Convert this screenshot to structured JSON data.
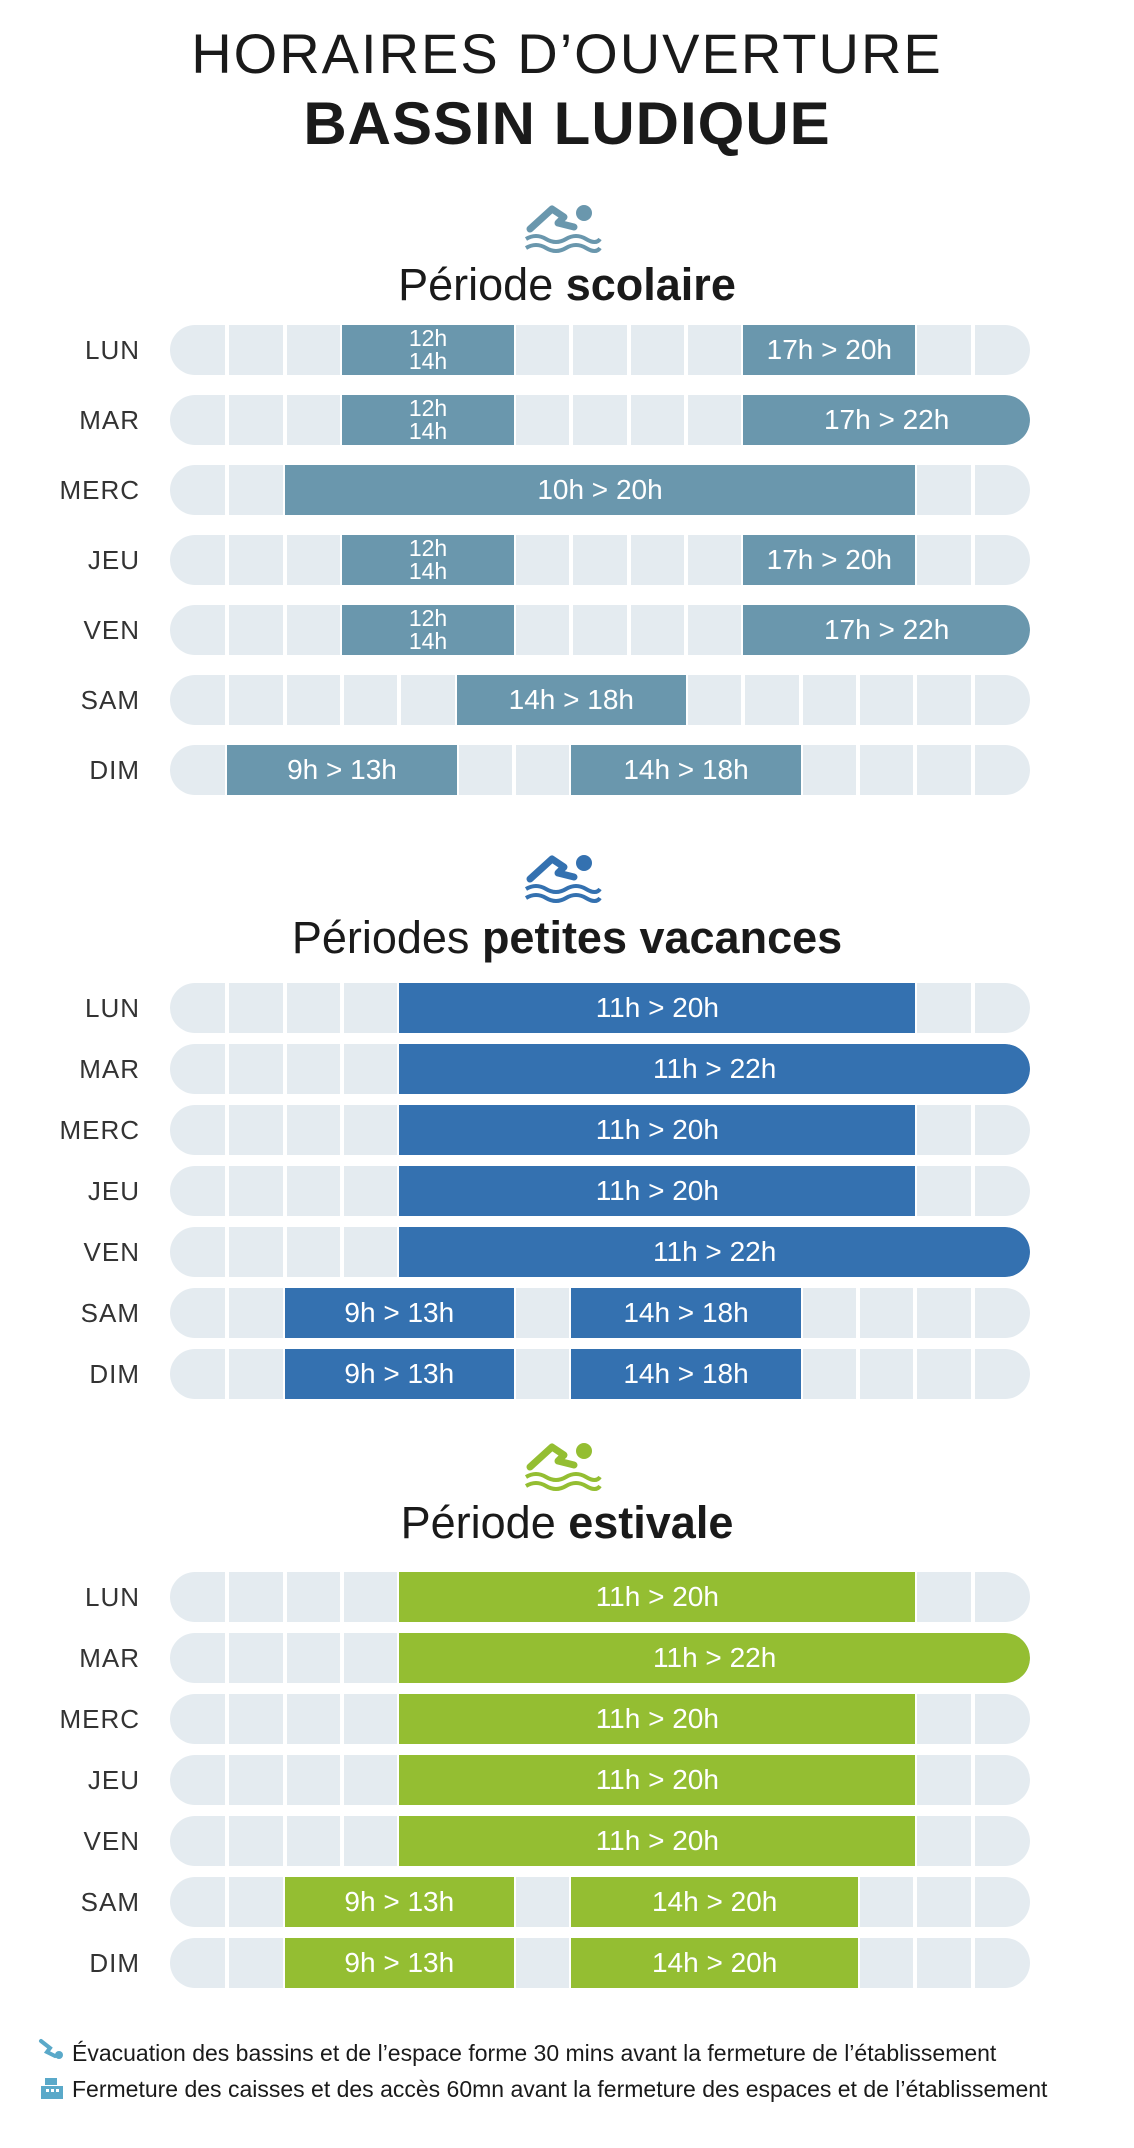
{
  "header": {
    "line1": "HORAIRES D’OUVERTURE",
    "line2": "BASSIN LUDIQUE"
  },
  "colors": {
    "scolaire": "#6a97ad",
    "vacances": "#3471b0",
    "estivale": "#94be32",
    "track": "#e4ebf0"
  },
  "periods": [
    {
      "icon": "swimmer-icon",
      "title_normal": "Période",
      "title_bold": "scolaire",
      "days": [
        {
          "day": "LUN",
          "segments": [
            {
              "label_top": "12h",
              "label_bottom": "14h"
            },
            {
              "label": "17h > 20h"
            }
          ]
        },
        {
          "day": "MAR",
          "segments": [
            {
              "label_top": "12h",
              "label_bottom": "14h"
            },
            {
              "label": "17h > 22h"
            }
          ]
        },
        {
          "day": "MERC",
          "segments": [
            {
              "label": "10h > 20h"
            }
          ]
        },
        {
          "day": "JEU",
          "segments": [
            {
              "label_top": "12h",
              "label_bottom": "14h"
            },
            {
              "label": "17h > 20h"
            }
          ]
        },
        {
          "day": "VEN",
          "segments": [
            {
              "label_top": "12h",
              "label_bottom": "14h"
            },
            {
              "label": "17h > 22h"
            }
          ]
        },
        {
          "day": "SAM",
          "segments": [
            {
              "label": "14h > 18h"
            }
          ]
        },
        {
          "day": "DIM",
          "segments": [
            {
              "label": "9h > 13h"
            },
            {
              "label": "14h > 18h"
            }
          ]
        }
      ]
    },
    {
      "icon": "swimmer-icon",
      "title_normal": "Périodes",
      "title_bold": "petites vacances",
      "days": [
        {
          "day": "LUN",
          "segments": [
            {
              "label": "11h > 20h"
            }
          ]
        },
        {
          "day": "MAR",
          "segments": [
            {
              "label": "11h > 22h"
            }
          ]
        },
        {
          "day": "MERC",
          "segments": [
            {
              "label": "11h > 20h"
            }
          ]
        },
        {
          "day": "JEU",
          "segments": [
            {
              "label": "11h > 20h"
            }
          ]
        },
        {
          "day": "VEN",
          "segments": [
            {
              "label": "11h > 22h"
            }
          ]
        },
        {
          "day": "SAM",
          "segments": [
            {
              "label": "9h > 13h"
            },
            {
              "label": "14h > 18h"
            }
          ]
        },
        {
          "day": "DIM",
          "segments": [
            {
              "label": "9h > 13h"
            },
            {
              "label": "14h > 18h"
            }
          ]
        }
      ]
    },
    {
      "icon": "swimmer-icon",
      "title_normal": "Période",
      "title_bold": "estivale",
      "days": [
        {
          "day": "LUN",
          "segments": [
            {
              "label": "11h > 20h"
            }
          ]
        },
        {
          "day": "MAR",
          "segments": [
            {
              "label": "11h > 22h"
            }
          ]
        },
        {
          "day": "MERC",
          "segments": [
            {
              "label": "11h > 20h"
            }
          ]
        },
        {
          "day": "JEU",
          "segments": [
            {
              "label": "11h > 20h"
            }
          ]
        },
        {
          "day": "VEN",
          "segments": [
            {
              "label": "11h > 20h"
            }
          ]
        },
        {
          "day": "SAM",
          "segments": [
            {
              "label": "9h > 13h"
            },
            {
              "label": "14h > 20h"
            }
          ]
        },
        {
          "day": "DIM",
          "segments": [
            {
              "label": "9h > 13h"
            },
            {
              "label": "14h > 20h"
            }
          ]
        }
      ]
    }
  ],
  "footer": {
    "note1": "Évacuation des bassins et de l’espace forme 30 mins avant la fermeture de l’établissement",
    "note1_icon": "diver-icon",
    "note2": "Fermeture des caisses et des accès 60mn avant la fermeture des espaces et de l’établissement",
    "note2_icon": "cash-register-icon"
  }
}
